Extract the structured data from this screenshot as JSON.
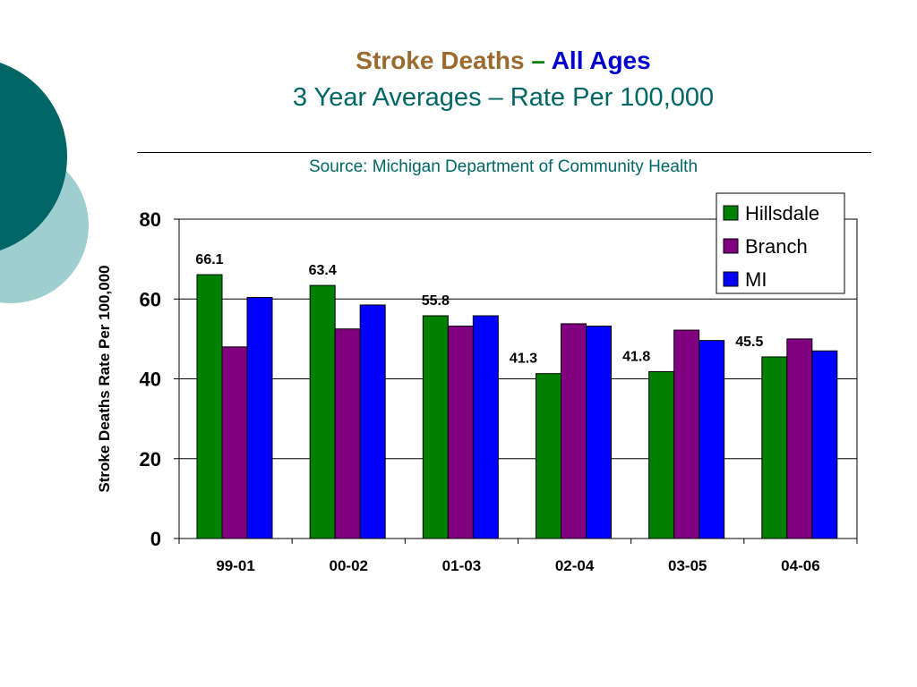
{
  "slide": {
    "title_part1": "Stroke Deaths",
    "title_dash": "–",
    "title_part2": "All Ages",
    "subtitle": "3 Year Averages – Rate Per 100,000",
    "source": "Source: Michigan Department of Community Health"
  },
  "colors": {
    "title_brown": "#9A6B2F",
    "title_green": "#008000",
    "title_blue": "#0000CC",
    "teal_dark": "#006666",
    "teal_light": "#9ECFCF",
    "hillsdale": "#008000",
    "branch": "#800080",
    "mi": "#0000FF"
  },
  "chart_data": {
    "type": "bar",
    "categories": [
      "99-01",
      "00-02",
      "01-03",
      "02-04",
      "03-05",
      "04-06"
    ],
    "series": [
      {
        "name": "Hillsdale",
        "values": [
          66.1,
          63.4,
          55.8,
          41.3,
          41.8,
          45.5
        ],
        "labels": [
          "66.1",
          "63.4",
          "55.8",
          "41.3",
          "41.8",
          "45.5"
        ]
      },
      {
        "name": "Branch",
        "values": [
          48,
          52.5,
          53.2,
          53.8,
          52.2,
          50
        ]
      },
      {
        "name": "MI",
        "values": [
          60.4,
          58.5,
          55.8,
          53.2,
          49.6,
          47
        ]
      }
    ],
    "ylabel": "Stroke Deaths Rate Per 100,000",
    "xlabel": "",
    "ylim": [
      0,
      80
    ],
    "yticks": [
      0,
      20,
      40,
      60,
      80
    ],
    "grid": true,
    "legend_position": "top-right"
  }
}
